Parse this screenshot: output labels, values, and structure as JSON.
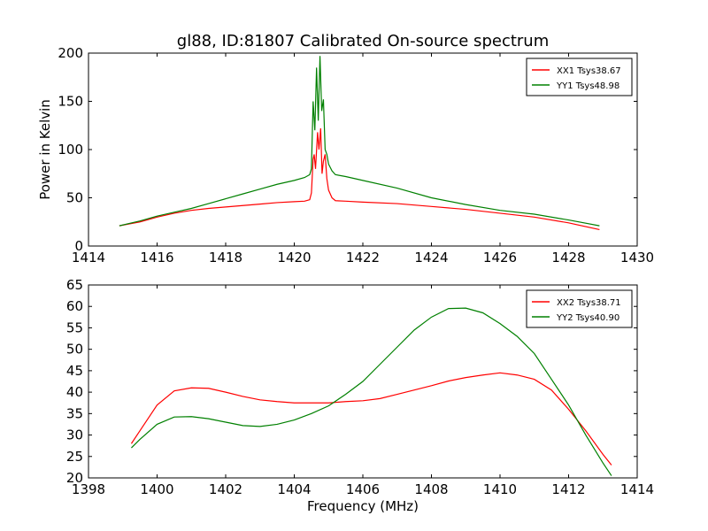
{
  "figure": {
    "title": "gl88, ID:81807 Calibrated On-source spectrum"
  },
  "chart_data": [
    {
      "type": "line",
      "title": "gl88, ID:81807 Calibrated On-source spectrum",
      "xlabel": "",
      "ylabel": "Power in Kelvin",
      "xlim": [
        1414,
        1430
      ],
      "ylim": [
        0,
        200
      ],
      "xticks": [
        1414,
        1416,
        1418,
        1420,
        1422,
        1424,
        1426,
        1428,
        1430
      ],
      "yticks": [
        0,
        50,
        100,
        150,
        200
      ],
      "legend": "top-right",
      "grid": false,
      "series": [
        {
          "name": "XX1 Tsys38.67",
          "color": "#ff0000",
          "points": [
            [
              1414.9,
              21
            ],
            [
              1415.5,
              25
            ],
            [
              1416,
              30
            ],
            [
              1416.5,
              34
            ],
            [
              1417,
              37
            ],
            [
              1417.5,
              39
            ],
            [
              1418,
              40.5
            ],
            [
              1418.5,
              42
            ],
            [
              1419,
              43.5
            ],
            [
              1419.5,
              45
            ],
            [
              1420,
              46
            ],
            [
              1420.3,
              46.5
            ],
            [
              1420.45,
              48
            ],
            [
              1420.5,
              55
            ],
            [
              1420.55,
              90
            ],
            [
              1420.58,
              95
            ],
            [
              1420.62,
              80
            ],
            [
              1420.68,
              118
            ],
            [
              1420.72,
              100
            ],
            [
              1420.77,
              122
            ],
            [
              1420.81,
              75
            ],
            [
              1420.85,
              88
            ],
            [
              1420.9,
              95
            ],
            [
              1420.95,
              70
            ],
            [
              1421.0,
              58
            ],
            [
              1421.1,
              50
            ],
            [
              1421.2,
              47
            ],
            [
              1421.5,
              46.5
            ],
            [
              1422,
              45.5
            ],
            [
              1423,
              44
            ],
            [
              1424,
              41
            ],
            [
              1425,
              38
            ],
            [
              1426,
              34
            ],
            [
              1427,
              30
            ],
            [
              1428,
              24
            ],
            [
              1428.9,
              17
            ]
          ]
        },
        {
          "name": "YY1 Tsys48.98",
          "color": "#008000",
          "points": [
            [
              1414.9,
              21
            ],
            [
              1415.5,
              26
            ],
            [
              1416,
              31
            ],
            [
              1416.5,
              35
            ],
            [
              1417,
              39
            ],
            [
              1417.5,
              44
            ],
            [
              1418,
              49
            ],
            [
              1418.5,
              54
            ],
            [
              1419,
              59
            ],
            [
              1419.5,
              64
            ],
            [
              1420,
              68
            ],
            [
              1420.3,
              71
            ],
            [
              1420.45,
              74
            ],
            [
              1420.5,
              80
            ],
            [
              1420.55,
              150
            ],
            [
              1420.6,
              120
            ],
            [
              1420.65,
              185
            ],
            [
              1420.7,
              130
            ],
            [
              1420.75,
              197
            ],
            [
              1420.8,
              140
            ],
            [
              1420.85,
              152
            ],
            [
              1420.9,
              100
            ],
            [
              1420.95,
              95
            ],
            [
              1421.0,
              85
            ],
            [
              1421.1,
              78
            ],
            [
              1421.2,
              74
            ],
            [
              1421.5,
              72
            ],
            [
              1422,
              68
            ],
            [
              1423,
              60
            ],
            [
              1424,
              50
            ],
            [
              1425,
              43
            ],
            [
              1426,
              37
            ],
            [
              1427,
              33
            ],
            [
              1428,
              27
            ],
            [
              1428.9,
              21
            ]
          ]
        }
      ]
    },
    {
      "type": "line",
      "title": "",
      "xlabel": "Frequency (MHz)",
      "ylabel": "",
      "xlim": [
        1398,
        1414
      ],
      "ylim": [
        20,
        65
      ],
      "xticks": [
        1398,
        1400,
        1402,
        1404,
        1406,
        1408,
        1410,
        1412,
        1414
      ],
      "yticks": [
        20,
        25,
        30,
        35,
        40,
        45,
        50,
        55,
        60,
        65
      ],
      "legend": "top-right",
      "grid": false,
      "series": [
        {
          "name": "XX2 Tsys38.71",
          "color": "#ff0000",
          "points": [
            [
              1399.25,
              28
            ],
            [
              1399.5,
              31
            ],
            [
              1400,
              37
            ],
            [
              1400.5,
              40.3
            ],
            [
              1401,
              41
            ],
            [
              1401.5,
              40.9
            ],
            [
              1402,
              40
            ],
            [
              1402.5,
              39
            ],
            [
              1403,
              38.2
            ],
            [
              1403.5,
              37.8
            ],
            [
              1404,
              37.5
            ],
            [
              1404.5,
              37.5
            ],
            [
              1405,
              37.5
            ],
            [
              1405.5,
              37.8
            ],
            [
              1406,
              38
            ],
            [
              1406.5,
              38.5
            ],
            [
              1407,
              39.5
            ],
            [
              1407.5,
              40.5
            ],
            [
              1408,
              41.5
            ],
            [
              1408.5,
              42.6
            ],
            [
              1409,
              43.4
            ],
            [
              1409.5,
              44
            ],
            [
              1410,
              44.5
            ],
            [
              1410.5,
              44
            ],
            [
              1411,
              43
            ],
            [
              1411.5,
              40.5
            ],
            [
              1412,
              36
            ],
            [
              1412.5,
              31
            ],
            [
              1413,
              25.5
            ],
            [
              1413.25,
              23
            ]
          ]
        },
        {
          "name": "YY2 Tsys40.90",
          "color": "#008000",
          "points": [
            [
              1399.25,
              27
            ],
            [
              1399.5,
              29
            ],
            [
              1400,
              32.5
            ],
            [
              1400.5,
              34.2
            ],
            [
              1401,
              34.3
            ],
            [
              1401.5,
              33.8
            ],
            [
              1402,
              33
            ],
            [
              1402.5,
              32.2
            ],
            [
              1403,
              32
            ],
            [
              1403.5,
              32.5
            ],
            [
              1404,
              33.5
            ],
            [
              1404.5,
              35
            ],
            [
              1405,
              36.8
            ],
            [
              1405.5,
              39.5
            ],
            [
              1406,
              42.5
            ],
            [
              1406.5,
              46.5
            ],
            [
              1407,
              50.5
            ],
            [
              1407.5,
              54.5
            ],
            [
              1408,
              57.5
            ],
            [
              1408.5,
              59.5
            ],
            [
              1409,
              59.6
            ],
            [
              1409.5,
              58.5
            ],
            [
              1410,
              56
            ],
            [
              1410.5,
              53
            ],
            [
              1411,
              49
            ],
            [
              1411.5,
              43
            ],
            [
              1412,
              37
            ],
            [
              1412.5,
              30
            ],
            [
              1413,
              23.5
            ],
            [
              1413.25,
              20.5
            ]
          ]
        }
      ]
    }
  ]
}
